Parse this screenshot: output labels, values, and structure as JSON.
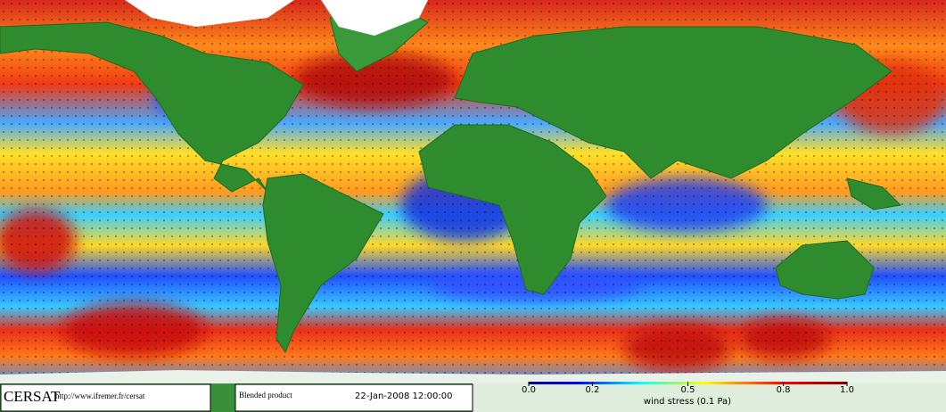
{
  "footer": {
    "logo": "CERSAT",
    "url": "http://www.ifremer.fr/cersat",
    "product": "Blended product",
    "date": "22-Jan-2008 12:00:00"
  },
  "colorbar": {
    "label": "wind stress (0.1 Pa)",
    "lim": [
      0,
      1
    ],
    "ticks": [
      {
        "value": 0,
        "label": "0.0"
      },
      0.2,
      0.5,
      0.8,
      {
        "value": 1,
        "label": "1.0"
      }
    ]
  }
}
